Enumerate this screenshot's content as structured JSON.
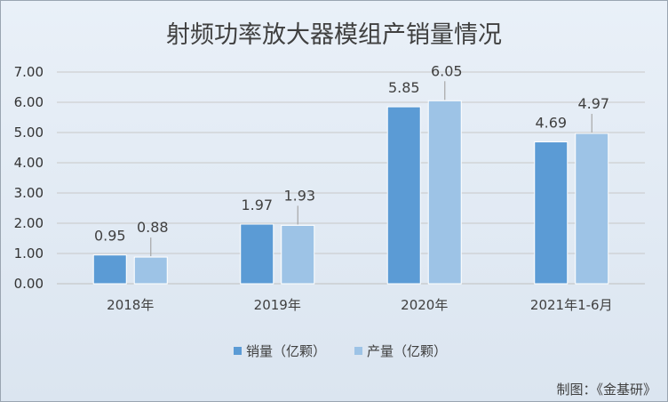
{
  "chart_data": {
    "type": "bar",
    "title": "射频功率放大器模组产销量情况",
    "categories": [
      "2018年",
      "2019年",
      "2020年",
      "2021年1-6月"
    ],
    "series": [
      {
        "name": "销量（亿颗）",
        "values": [
          0.95,
          1.97,
          5.85,
          4.69
        ],
        "color": "#5b9bd5"
      },
      {
        "name": "产量（亿颗）",
        "values": [
          0.88,
          1.93,
          6.05,
          4.97
        ],
        "color": "#9dc3e6"
      }
    ],
    "y_ticks": [
      "0.00",
      "1.00",
      "2.00",
      "3.00",
      "4.00",
      "5.00",
      "6.00",
      "7.00"
    ],
    "ylim": [
      0,
      7
    ],
    "legend_position": "bottom",
    "grid": true,
    "colors": {
      "background": "#e1e9f3",
      "grid": "#c8c8c8",
      "text": "#404040"
    }
  },
  "credit": "制图：《金基研》"
}
